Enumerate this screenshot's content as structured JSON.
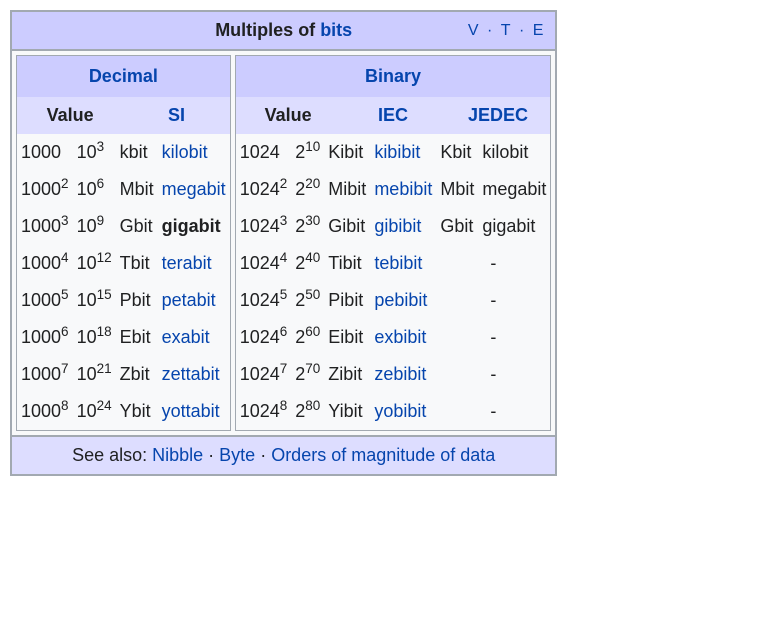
{
  "title_prefix": "Multiples of ",
  "title_link": "bits",
  "nav": {
    "v": "v",
    "t": "t",
    "e": "e",
    "sep": " · "
  },
  "decimal": {
    "header": "Decimal",
    "sub": {
      "value": "Value",
      "si": "SI"
    },
    "rows": [
      {
        "base": "1000",
        "bexp": "",
        "ten": "10",
        "texp": "3",
        "sym": "kbit",
        "name": "kilobit",
        "bold": false
      },
      {
        "base": "1000",
        "bexp": "2",
        "ten": "10",
        "texp": "6",
        "sym": "Mbit",
        "name": "megabit",
        "bold": false
      },
      {
        "base": "1000",
        "bexp": "3",
        "ten": "10",
        "texp": "9",
        "sym": "Gbit",
        "name": "gigabit",
        "bold": true
      },
      {
        "base": "1000",
        "bexp": "4",
        "ten": "10",
        "texp": "12",
        "sym": "Tbit",
        "name": "terabit",
        "bold": false
      },
      {
        "base": "1000",
        "bexp": "5",
        "ten": "10",
        "texp": "15",
        "sym": "Pbit",
        "name": "petabit",
        "bold": false
      },
      {
        "base": "1000",
        "bexp": "6",
        "ten": "10",
        "texp": "18",
        "sym": "Ebit",
        "name": "exabit",
        "bold": false
      },
      {
        "base": "1000",
        "bexp": "7",
        "ten": "10",
        "texp": "21",
        "sym": "Zbit",
        "name": "zettabit",
        "bold": false
      },
      {
        "base": "1000",
        "bexp": "8",
        "ten": "10",
        "texp": "24",
        "sym": "Ybit",
        "name": "yottabit",
        "bold": false
      }
    ]
  },
  "binary": {
    "header": "Binary",
    "sub": {
      "value": "Value",
      "iec": "IEC",
      "jedec": "JEDEC"
    },
    "rows": [
      {
        "base": "1024",
        "bexp": "",
        "two": "2",
        "texp": "10",
        "isym": "Kibit",
        "iname": "kibibit",
        "jsym": "Kbit",
        "jname": "kilobit"
      },
      {
        "base": "1024",
        "bexp": "2",
        "two": "2",
        "texp": "20",
        "isym": "Mibit",
        "iname": "mebibit",
        "jsym": "Mbit",
        "jname": "megabit"
      },
      {
        "base": "1024",
        "bexp": "3",
        "two": "2",
        "texp": "30",
        "isym": "Gibit",
        "iname": "gibibit",
        "jsym": "Gbit",
        "jname": "gigabit"
      },
      {
        "base": "1024",
        "bexp": "4",
        "two": "2",
        "texp": "40",
        "isym": "Tibit",
        "iname": "tebibit",
        "jsym": "-",
        "jname": ""
      },
      {
        "base": "1024",
        "bexp": "5",
        "two": "2",
        "texp": "50",
        "isym": "Pibit",
        "iname": "pebibit",
        "jsym": "-",
        "jname": ""
      },
      {
        "base": "1024",
        "bexp": "6",
        "two": "2",
        "texp": "60",
        "isym": "Eibit",
        "iname": "exbibit",
        "jsym": "-",
        "jname": ""
      },
      {
        "base": "1024",
        "bexp": "7",
        "two": "2",
        "texp": "70",
        "isym": "Zibit",
        "iname": "zebibit",
        "jsym": "-",
        "jname": ""
      },
      {
        "base": "1024",
        "bexp": "8",
        "two": "2",
        "texp": "80",
        "isym": "Yibit",
        "iname": "yobibit",
        "jsym": "-",
        "jname": ""
      }
    ]
  },
  "footer": {
    "prefix": "See also: ",
    "links": [
      "Nibble",
      "Byte",
      "Orders of magnitude of data"
    ],
    "sep": " · "
  }
}
